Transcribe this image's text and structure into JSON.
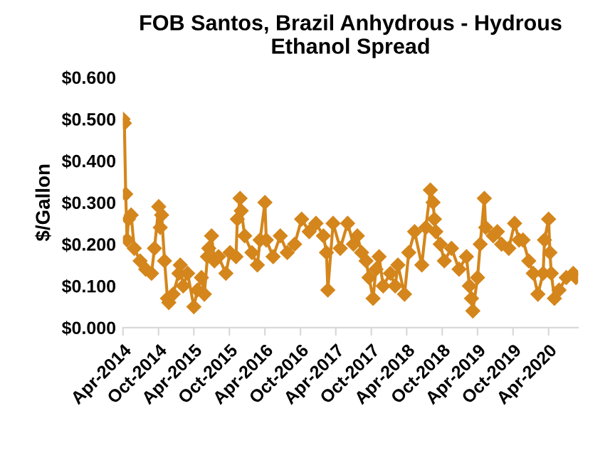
{
  "chart_data": {
    "type": "line",
    "title": "FOB Santos, Brazil Anhydrous - Hydrous\nEthanol Spread",
    "ylabel": "$/Gallon",
    "x": [
      "2014-04-01",
      "2014-04-08",
      "2014-04-15",
      "2014-04-22",
      "2014-04-29",
      "2014-05-13",
      "2014-05-29",
      "2014-06-28",
      "2014-07-27",
      "2014-08-26",
      "2014-09-10",
      "2014-10-02",
      "2014-10-10",
      "2014-10-17",
      "2014-11-01",
      "2014-11-16",
      "2014-11-23",
      "2014-12-15",
      "2015-01-14",
      "2015-01-21",
      "2015-02-05",
      "2015-02-28",
      "2015-04-01",
      "2015-04-19",
      "2015-05-10",
      "2015-05-25",
      "2015-06-10",
      "2015-06-17",
      "2015-07-01",
      "2015-07-16",
      "2015-08-06",
      "2015-09-13",
      "2015-10-04",
      "2015-11-04",
      "2015-11-11",
      "2015-11-25",
      "2015-12-01",
      "2015-12-19",
      "2016-01-25",
      "2016-02-22",
      "2016-03-07",
      "2016-04-01",
      "2016-04-08",
      "2016-05-13",
      "2016-06-19",
      "2016-07-25",
      "2016-09-01",
      "2016-10-07",
      "2016-11-15",
      "2016-12-20",
      "2017-01-27",
      "2017-02-12",
      "2017-02-19",
      "2017-03-18",
      "2017-04-24",
      "2017-06-01",
      "2017-07-01",
      "2017-07-21",
      "2017-08-12",
      "2017-09-04",
      "2017-09-19",
      "2017-10-10",
      "2017-10-25",
      "2017-11-10",
      "2017-12-01",
      "2018-01-07",
      "2018-02-01",
      "2018-02-15",
      "2018-03-21",
      "2018-04-12",
      "2018-05-12",
      "2018-06-18",
      "2018-07-09",
      "2018-08-01",
      "2018-08-15",
      "2018-08-22",
      "2018-08-29",
      "2018-09-21",
      "2018-10-12",
      "2018-11-18",
      "2018-12-27",
      "2019-02-03",
      "2019-02-18",
      "2019-03-01",
      "2019-03-08",
      "2019-04-01",
      "2019-04-15",
      "2019-05-06",
      "2019-05-13",
      "2019-06-21",
      "2019-07-12",
      "2019-08-03",
      "2019-09-09",
      "2019-10-09",
      "2019-11-01",
      "2019-11-21",
      "2019-12-21",
      "2020-01-13",
      "2020-02-06",
      "2020-03-04",
      "2020-03-11",
      "2020-04-01",
      "2020-04-08",
      "2020-04-15",
      "2020-05-01",
      "2020-05-25",
      "2020-07-01",
      "2020-08-06",
      "2020-08-20"
    ],
    "series": [
      {
        "color": "#d4861c",
        "values": [
          0.5,
          0.49,
          0.32,
          0.21,
          0.26,
          0.27,
          0.19,
          0.16,
          0.14,
          0.13,
          0.19,
          0.29,
          0.24,
          0.27,
          0.16,
          0.07,
          0.06,
          0.08,
          0.13,
          0.15,
          0.1,
          0.13,
          0.05,
          0.09,
          0.12,
          0.08,
          0.17,
          0.19,
          0.22,
          0.16,
          0.17,
          0.13,
          0.18,
          0.17,
          0.26,
          0.31,
          0.28,
          0.22,
          0.18,
          0.15,
          0.21,
          0.3,
          0.21,
          0.17,
          0.22,
          0.18,
          0.2,
          0.26,
          0.23,
          0.25,
          0.22,
          0.18,
          0.09,
          0.25,
          0.19,
          0.25,
          0.2,
          0.22,
          0.18,
          0.16,
          0.12,
          0.07,
          0.14,
          0.17,
          0.1,
          0.13,
          0.1,
          0.15,
          0.08,
          0.18,
          0.23,
          0.15,
          0.24,
          0.33,
          0.3,
          0.26,
          0.23,
          0.2,
          0.16,
          0.19,
          0.14,
          0.17,
          0.1,
          0.07,
          0.04,
          0.12,
          0.2,
          0.31,
          0.24,
          0.22,
          0.23,
          0.2,
          0.19,
          0.25,
          0.21,
          0.21,
          0.16,
          0.13,
          0.08,
          0.13,
          0.21,
          0.26,
          0.18,
          0.13,
          0.07,
          0.09,
          0.12,
          0.13,
          0.12
        ]
      }
    ],
    "xlim": [
      "2014-04-01",
      "2020-08-31"
    ],
    "xticks": [
      {
        "value": "2014-04-01",
        "label": "Apr-2014"
      },
      {
        "value": "2014-10-01",
        "label": "Oct-2014"
      },
      {
        "value": "2015-04-01",
        "label": "Apr-2015"
      },
      {
        "value": "2015-10-01",
        "label": "Oct-2015"
      },
      {
        "value": "2016-04-01",
        "label": "Apr-2016"
      },
      {
        "value": "2016-10-01",
        "label": "Oct-2016"
      },
      {
        "value": "2017-04-01",
        "label": "Apr-2017"
      },
      {
        "value": "2017-10-01",
        "label": "Oct-2017"
      },
      {
        "value": "2018-04-01",
        "label": "Apr-2018"
      },
      {
        "value": "2018-10-01",
        "label": "Oct-2018"
      },
      {
        "value": "2019-04-01",
        "label": "Apr-2019"
      },
      {
        "value": "2019-10-01",
        "label": "Oct-2019"
      },
      {
        "value": "2020-04-01",
        "label": "Apr-2020"
      }
    ],
    "ylim": [
      0,
      0.6
    ],
    "yticks": [
      {
        "value": 0,
        "label": "$0.000"
      },
      {
        "value": 0.1,
        "label": "$0.100"
      },
      {
        "value": 0.2,
        "label": "$0.200"
      },
      {
        "value": 0.3,
        "label": "$0.300"
      },
      {
        "value": 0.4,
        "label": "$0.400"
      },
      {
        "value": 0.5,
        "label": "$0.500"
      },
      {
        "value": 0.6,
        "label": "$0.600"
      }
    ],
    "marker": "diamond",
    "line_style": "solid",
    "grid": false
  }
}
